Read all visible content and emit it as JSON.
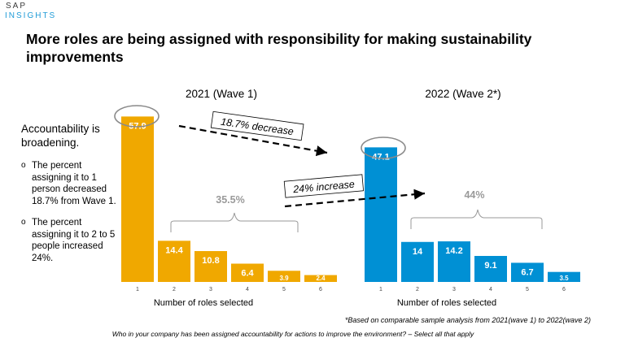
{
  "logo": {
    "line1": "SAP",
    "line2": "INSIGHTS"
  },
  "title": "More roles are being assigned with responsibility for making sustainability improvements",
  "sidebar": {
    "heading": "Accountability is broadening.",
    "bullet_symbol": "o",
    "bullets": [
      "The percent assigning it to 1 person decreased 18.7% from Wave 1.",
      "The percent assigning it to 2 to 5 people increased 24%."
    ]
  },
  "chart_data": [
    {
      "type": "bar",
      "title": "2021 (Wave 1)",
      "xlabel": "Number of roles selected",
      "categories": [
        "1",
        "2",
        "3",
        "4",
        "5",
        "6"
      ],
      "values": [
        57.9,
        14.4,
        10.8,
        6.4,
        3.9,
        2.4
      ],
      "value_labels": [
        "57.9",
        "14.4",
        "10.8",
        "6.4",
        "3.9",
        "2.4"
      ],
      "color": "#f0a800",
      "bracket_label": "35.5%",
      "ylim": [
        0,
        60
      ]
    },
    {
      "type": "bar",
      "title": "2022 (Wave 2*)",
      "xlabel": "Number of roles selected",
      "categories": [
        "1",
        "2",
        "3",
        "4",
        "5",
        "6"
      ],
      "values": [
        47.1,
        14,
        14.2,
        9.1,
        6.7,
        3.5
      ],
      "value_labels": [
        "47.1",
        "14",
        "14.2",
        "9.1",
        "6.7",
        "3.5"
      ],
      "color": "#0090d4",
      "bracket_label": "44%",
      "ylim": [
        0,
        60
      ]
    }
  ],
  "annotations": {
    "decrease": "18.7% decrease",
    "increase": "24% increase"
  },
  "footnote": "*Based on comparable sample analysis from 2021(wave 1) to 2022(wave 2)",
  "question": "Who in your company has been assigned accountability for actions to improve the environment? – Select all that apply"
}
